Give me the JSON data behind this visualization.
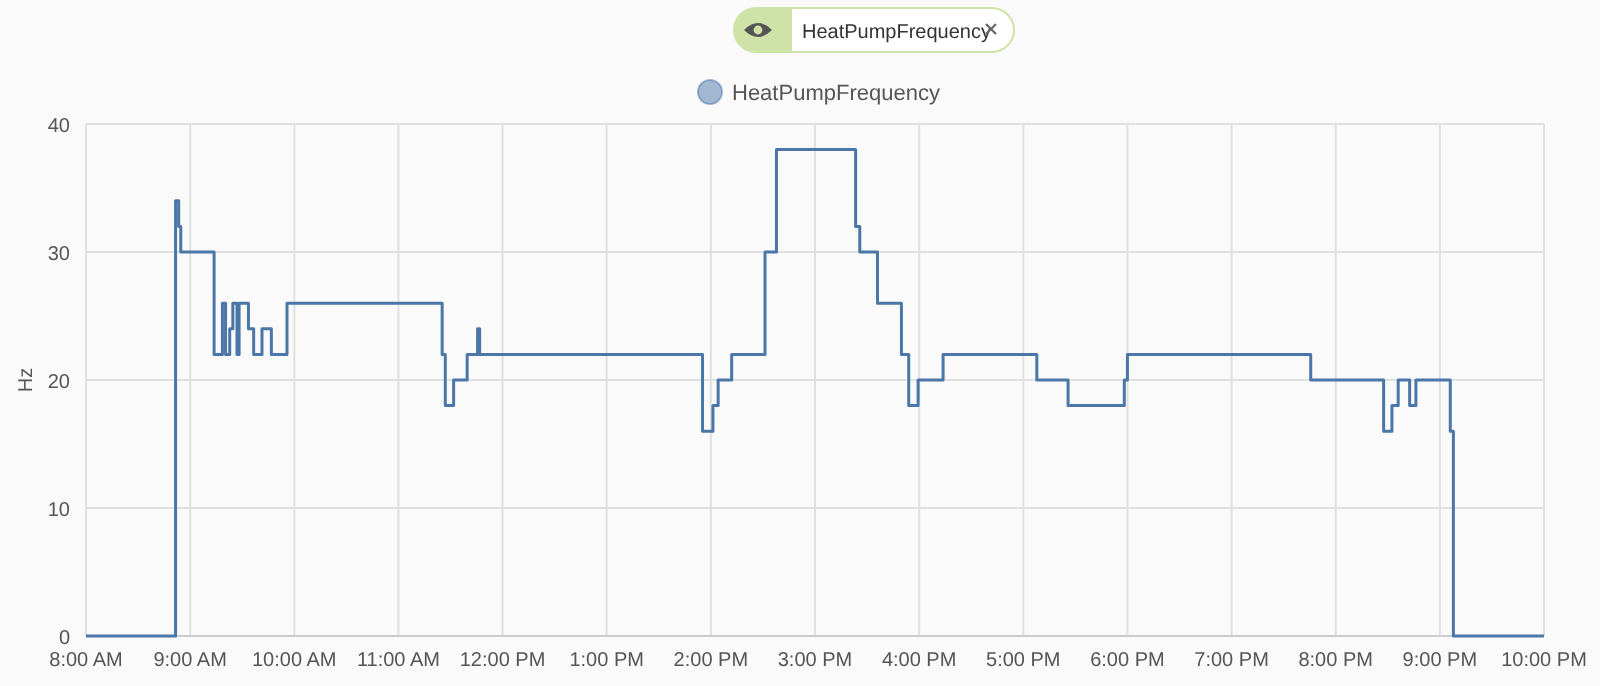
{
  "chart_data": {
    "type": "step",
    "ylabel": "Hz",
    "annotations": [
      "HeatPumpFrequency"
    ],
    "x": [
      8,
      8.86,
      8.89,
      8.91,
      9.23,
      9.31,
      9.34,
      9.38,
      9.41,
      9.45,
      9.47,
      9.56,
      9.61,
      9.69,
      9.78,
      9.93,
      11.42,
      11.45,
      11.53,
      11.66,
      11.76,
      11.78,
      13.92,
      14.02,
      14.07,
      14.2,
      14.52,
      14.63,
      15.39,
      15.43,
      15.6,
      15.83,
      15.9,
      15.99,
      16.23,
      17.13,
      17.43,
      17.97,
      18,
      19.76,
      20.46,
      20.54,
      20.6,
      20.71,
      20.77,
      21.1,
      21.13,
      22
    ],
    "series": [
      {
        "name": "HeatPumpFrequency",
        "color": "#4a76a8",
        "values": [
          0,
          34,
          32,
          30,
          22,
          26,
          22,
          24,
          26,
          22,
          26,
          24,
          22,
          24,
          22,
          26,
          22,
          18,
          20,
          22,
          24,
          22,
          16,
          18,
          20,
          22,
          30,
          38,
          32,
          30,
          26,
          22,
          18,
          20,
          22,
          20,
          18,
          20,
          22,
          20,
          16,
          18,
          20,
          18,
          20,
          16,
          0,
          0
        ]
      }
    ],
    "xlim": [
      8,
      22
    ],
    "xticks": [
      {
        "value": 8,
        "label": "8:00 AM"
      },
      {
        "value": 9,
        "label": "9:00 AM"
      },
      {
        "value": 10,
        "label": "10:00 AM"
      },
      {
        "value": 11,
        "label": "11:00 AM"
      },
      {
        "value": 12,
        "label": "12:00 PM"
      },
      {
        "value": 13,
        "label": "1:00 PM"
      },
      {
        "value": 14,
        "label": "2:00 PM"
      },
      {
        "value": 15,
        "label": "3:00 PM"
      },
      {
        "value": 16,
        "label": "4:00 PM"
      },
      {
        "value": 17,
        "label": "5:00 PM"
      },
      {
        "value": 18,
        "label": "6:00 PM"
      },
      {
        "value": 19,
        "label": "7:00 PM"
      },
      {
        "value": 20,
        "label": "8:00 PM"
      },
      {
        "value": 21,
        "label": "9:00 PM"
      },
      {
        "value": 22,
        "label": "10:00 PM"
      }
    ],
    "ylim": [
      0,
      40
    ],
    "yticks": [
      0,
      10,
      20,
      30,
      40
    ],
    "grid": true,
    "legend": "top",
    "marker": "none",
    "line_style": "solid"
  }
}
